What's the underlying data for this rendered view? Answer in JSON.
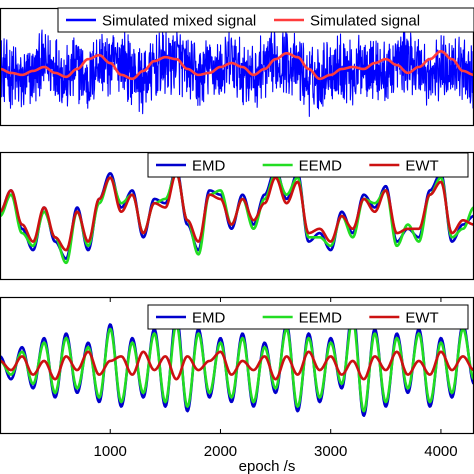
{
  "chart_data": [
    {
      "type": "line",
      "title": "",
      "xlabel": "",
      "ylabel": "",
      "xlim": [
        0,
        4300
      ],
      "ylim": [
        -1.4,
        1.6
      ],
      "grid": false,
      "legend_placement": "top",
      "x_ticks": [],
      "x_tick_labels": [],
      "series": [
        {
          "name": "Simulated mixed signal",
          "color": "#0000ff",
          "style": "noisy",
          "x": [
            0,
            100,
            200,
            300,
            400,
            500,
            600,
            700,
            800,
            900,
            1000,
            1100,
            1200,
            1300,
            1400,
            1500,
            1600,
            1700,
            1800,
            1900,
            2000,
            2100,
            2200,
            2300,
            2400,
            2500,
            2600,
            2700,
            2800,
            2900,
            3000,
            3100,
            3200,
            3300,
            3400,
            3500,
            3600,
            3700,
            3800,
            3900,
            4000,
            4100,
            4200,
            4300
          ],
          "y": [
            0.1,
            -0.3,
            -0.8,
            -0.2,
            0.6,
            0.3,
            -0.5,
            0.2,
            -0.9,
            0.7,
            0.4,
            0.8,
            -0.1,
            -0.7,
            0.2,
            0.5,
            0.9,
            0.1,
            -0.6,
            0.3,
            -0.2,
            0.6,
            0.1,
            -0.4,
            0.2,
            0.5,
            0.9,
            0.3,
            -0.8,
            -0.5,
            0.2,
            0.4,
            -0.2,
            0.7,
            0.1,
            -0.3,
            0.6,
            0.8,
            0.4,
            -0.6,
            0.3,
            0.5,
            0.1,
            -0.2
          ],
          "noise_amplitude": 0.9
        },
        {
          "name": "Simulated signal",
          "color": "#ff3c3c",
          "style": "smooth",
          "x": [
            0,
            100,
            200,
            300,
            400,
            500,
            600,
            700,
            800,
            900,
            1000,
            1100,
            1200,
            1300,
            1400,
            1500,
            1600,
            1700,
            1800,
            1900,
            2000,
            2100,
            2200,
            2300,
            2400,
            2500,
            2600,
            2700,
            2800,
            2900,
            3000,
            3100,
            3200,
            3300,
            3400,
            3500,
            3600,
            3700,
            3800,
            3900,
            4000,
            4100,
            4200,
            4300
          ],
          "y": [
            0.05,
            -0.05,
            -0.1,
            0.0,
            0.1,
            -0.05,
            -0.15,
            0.05,
            0.3,
            0.4,
            0.2,
            -0.1,
            -0.2,
            0.0,
            0.25,
            0.35,
            0.3,
            0.05,
            -0.1,
            -0.05,
            0.1,
            0.2,
            0.1,
            -0.1,
            0.05,
            0.3,
            0.45,
            0.35,
            0.05,
            -0.2,
            -0.1,
            0.05,
            0.1,
            0.05,
            0.2,
            0.3,
            0.15,
            -0.05,
            0.1,
            0.3,
            0.5,
            0.3,
            0.0,
            -0.1
          ]
        }
      ]
    },
    {
      "type": "line",
      "title": "",
      "xlabel": "",
      "ylabel": "",
      "xlim": [
        0,
        4300
      ],
      "ylim": [
        -1.5,
        1.5
      ],
      "grid": false,
      "legend_placement": "top-right",
      "x_ticks": [],
      "x_tick_labels": [],
      "series": [
        {
          "name": "EMD",
          "color": "#0000cc",
          "x": [
            0,
            100,
            200,
            300,
            400,
            500,
            600,
            700,
            800,
            900,
            1000,
            1100,
            1200,
            1300,
            1400,
            1500,
            1600,
            1700,
            1800,
            1900,
            2000,
            2100,
            2200,
            2300,
            2400,
            2500,
            2600,
            2700,
            2800,
            2900,
            3000,
            3100,
            3200,
            3300,
            3400,
            3500,
            3600,
            3700,
            3800,
            3900,
            4000,
            4100,
            4200,
            4300
          ],
          "y": [
            0.1,
            0.6,
            -0.3,
            -0.8,
            0.2,
            -0.6,
            -1.0,
            0.2,
            -0.8,
            0.4,
            1.0,
            0.2,
            0.6,
            -0.5,
            0.4,
            0.3,
            1.1,
            -0.2,
            -0.8,
            0.6,
            0.5,
            -0.3,
            0.5,
            -0.2,
            0.5,
            1.1,
            0.4,
            1.0,
            -0.6,
            -0.4,
            -0.8,
            0.1,
            -0.4,
            0.5,
            0.2,
            0.7,
            -0.6,
            -0.3,
            -0.5,
            0.6,
            1.0,
            -0.6,
            -0.2,
            0.0
          ]
        },
        {
          "name": "EEMD",
          "color": "#22dd22",
          "x": [
            0,
            100,
            200,
            300,
            400,
            500,
            600,
            700,
            800,
            900,
            1000,
            1100,
            1200,
            1300,
            1400,
            1500,
            1600,
            1700,
            1800,
            1900,
            2000,
            2100,
            2200,
            2300,
            2400,
            2500,
            2600,
            2700,
            2800,
            2900,
            3000,
            3100,
            3200,
            3300,
            3400,
            3500,
            3600,
            3700,
            3800,
            3900,
            4000,
            4100,
            4200,
            4300
          ],
          "y": [
            0.0,
            0.5,
            -0.4,
            -0.7,
            0.1,
            -0.5,
            -1.1,
            0.1,
            -0.7,
            0.3,
            0.9,
            0.3,
            0.5,
            -0.4,
            0.3,
            0.4,
            1.0,
            -0.1,
            -0.9,
            0.5,
            0.6,
            -0.2,
            0.4,
            -0.3,
            0.4,
            1.0,
            0.5,
            0.9,
            -0.5,
            -0.5,
            -0.7,
            0.0,
            -0.5,
            0.4,
            0.3,
            0.6,
            -0.7,
            -0.2,
            -0.6,
            0.5,
            0.9,
            -0.5,
            -0.3,
            0.2
          ]
        },
        {
          "name": "EWT",
          "color": "#cc1111",
          "x": [
            0,
            100,
            200,
            300,
            400,
            500,
            600,
            700,
            800,
            900,
            1000,
            1100,
            1200,
            1300,
            1400,
            1500,
            1600,
            1700,
            1800,
            1900,
            2000,
            2100,
            2200,
            2300,
            2400,
            2500,
            2600,
            2700,
            2800,
            2900,
            3000,
            3100,
            3200,
            3300,
            3400,
            3500,
            3600,
            3700,
            3800,
            3900,
            4000,
            4100,
            4200,
            4300
          ],
          "y": [
            0.1,
            0.6,
            -0.2,
            -0.6,
            0.2,
            -0.5,
            -0.8,
            0.1,
            -0.6,
            0.4,
            0.9,
            0.1,
            0.5,
            -0.4,
            0.3,
            0.2,
            1.0,
            -0.1,
            -0.6,
            0.5,
            0.4,
            -0.2,
            0.4,
            -0.1,
            0.3,
            0.9,
            0.3,
            0.8,
            -0.4,
            -0.3,
            -0.6,
            0.0,
            -0.3,
            0.4,
            0.1,
            0.6,
            -0.4,
            -0.3,
            -0.3,
            0.5,
            0.8,
            -0.4,
            -0.1,
            -0.2
          ]
        }
      ]
    },
    {
      "type": "line",
      "title": "",
      "xlabel": "epoch /s",
      "ylabel": "",
      "xlim": [
        0,
        4300
      ],
      "ylim": [
        -1.5,
        1.5
      ],
      "grid": false,
      "legend_placement": "top-right",
      "x_ticks": [
        1000,
        2000,
        3000,
        4000
      ],
      "x_tick_labels": [
        "1000",
        "2000",
        "3000",
        "4000"
      ],
      "series": [
        {
          "name": "EMD",
          "color": "#0000cc",
          "x": [
            0,
            100,
            200,
            300,
            400,
            500,
            600,
            700,
            800,
            900,
            1000,
            1100,
            1200,
            1300,
            1400,
            1500,
            1600,
            1700,
            1800,
            1900,
            2000,
            2100,
            2200,
            2300,
            2400,
            2500,
            2600,
            2700,
            2800,
            2900,
            3000,
            3100,
            3200,
            3300,
            3400,
            3500,
            3600,
            3700,
            3800,
            3900,
            4000,
            4100,
            4200,
            4300
          ],
          "y": [
            0.2,
            -0.3,
            0.4,
            -0.5,
            0.6,
            -0.7,
            0.7,
            -0.6,
            0.5,
            -0.8,
            0.9,
            -0.9,
            0.6,
            -0.7,
            0.8,
            -0.9,
            1.1,
            -1.0,
            0.8,
            -0.7,
            0.6,
            -0.8,
            0.7,
            -0.9,
            0.5,
            -0.6,
            0.9,
            -1.0,
            0.7,
            -0.8,
            0.6,
            -0.5,
            1.2,
            -1.1,
            0.8,
            -0.9,
            0.7,
            -0.6,
            0.8,
            -0.9,
            0.6,
            -0.7,
            0.9,
            -0.4
          ]
        },
        {
          "name": "EEMD",
          "color": "#22dd22",
          "x": [
            0,
            100,
            200,
            300,
            400,
            500,
            600,
            700,
            800,
            900,
            1000,
            1100,
            1200,
            1300,
            1400,
            1500,
            1600,
            1700,
            1800,
            1900,
            2000,
            2100,
            2200,
            2300,
            2400,
            2500,
            2600,
            2700,
            2800,
            2900,
            3000,
            3100,
            3200,
            3300,
            3400,
            3500,
            3600,
            3700,
            3800,
            3900,
            4000,
            4100,
            4200,
            4300
          ],
          "y": [
            0.1,
            -0.2,
            0.3,
            -0.4,
            0.5,
            -0.6,
            0.6,
            -0.5,
            0.4,
            -0.7,
            0.8,
            -0.8,
            0.5,
            -0.6,
            0.7,
            -0.8,
            0.9,
            -0.9,
            0.7,
            -0.6,
            0.5,
            -0.7,
            0.6,
            -0.8,
            0.4,
            -0.5,
            0.8,
            -0.9,
            0.6,
            -0.7,
            0.5,
            -0.4,
            1.0,
            -1.0,
            0.7,
            -0.8,
            0.6,
            -0.5,
            0.7,
            -0.8,
            0.5,
            -0.6,
            0.8,
            -0.3
          ]
        },
        {
          "name": "EWT",
          "color": "#cc1111",
          "x": [
            0,
            100,
            200,
            300,
            400,
            500,
            600,
            700,
            800,
            900,
            1000,
            1100,
            1200,
            1300,
            1400,
            1500,
            1600,
            1700,
            1800,
            1900,
            2000,
            2100,
            2200,
            2300,
            2400,
            2500,
            2600,
            2700,
            2800,
            2900,
            3000,
            3100,
            3200,
            3300,
            3400,
            3500,
            3600,
            3700,
            3800,
            3900,
            4000,
            4100,
            4200,
            4300
          ],
          "y": [
            0.1,
            -0.1,
            0.2,
            -0.2,
            0.1,
            -0.3,
            0.2,
            -0.1,
            0.3,
            -0.2,
            0.1,
            0.2,
            -0.2,
            0.3,
            -0.1,
            0.2,
            -0.3,
            0.2,
            -0.1,
            0.1,
            0.3,
            -0.2,
            0.1,
            -0.1,
            0.2,
            -0.3,
            0.2,
            -0.2,
            0.3,
            -0.1,
            0.2,
            -0.2,
            0.1,
            -0.3,
            0.2,
            -0.1,
            0.3,
            -0.2,
            0.1,
            -0.2,
            0.3,
            -0.1,
            0.2,
            -0.1
          ]
        }
      ]
    }
  ]
}
